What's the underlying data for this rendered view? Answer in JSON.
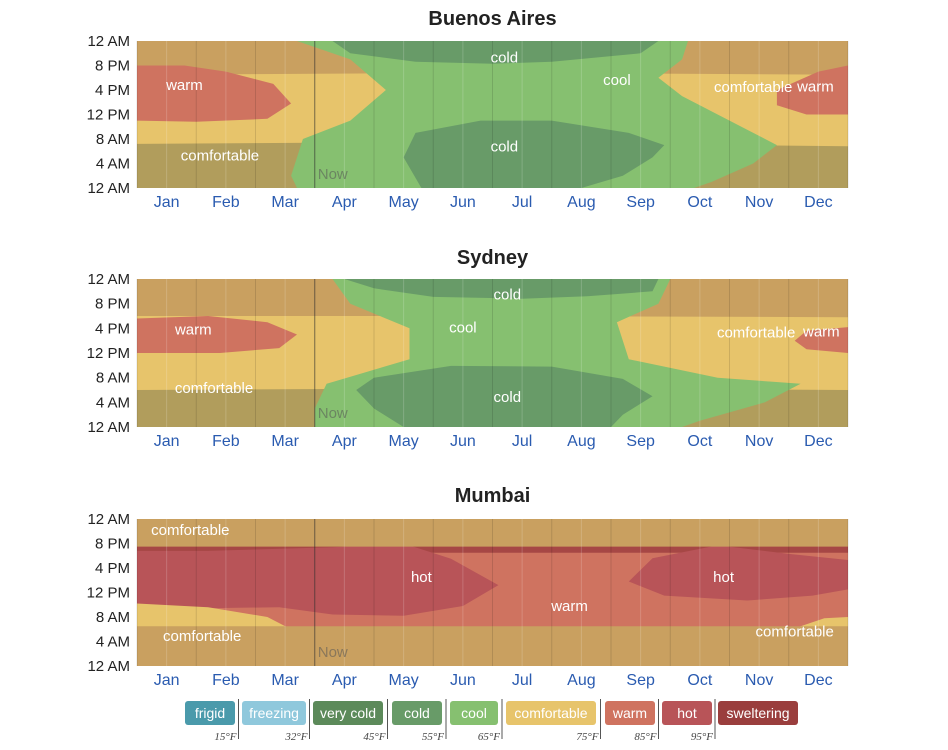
{
  "colors": {
    "frigid": "#4a9aab",
    "freezing": "#8fc8dc",
    "very_cold": "#5c8a5a",
    "cold": "#689b68",
    "cool": "#86c070",
    "comfortable": "#e7c46b",
    "warm": "#cf7360",
    "hot": "#b85458",
    "sweltering": "#9a3e3d",
    "dark_warm": "#c9a060",
    "dark_comfortable": "#b19d5c",
    "dark_cool": "#6ea86a",
    "dark_cold": "#587f52",
    "mumbai_base": "#a64745"
  },
  "chart_data": [
    {
      "type": "heatmap",
      "title": "Buenos Aires",
      "now_label": "Now",
      "now_month": 3.0,
      "xlabel": "",
      "ylabel": "",
      "base": "comfortable",
      "ylim": [
        0,
        24
      ],
      "yticks": [
        "12 AM",
        "4 AM",
        "8 AM",
        "12 PM",
        "4 PM",
        "8 PM",
        "12 AM"
      ],
      "months": [
        "Jan",
        "Feb",
        "Mar",
        "Apr",
        "May",
        "Jun",
        "Jul",
        "Aug",
        "Sep",
        "Oct",
        "Nov",
        "Dec"
      ],
      "bands": [
        {
          "category": "dark_comfortable",
          "polygon": [
            [
              0,
              0
            ],
            [
              12,
              0
            ],
            [
              12,
              6.8
            ],
            [
              7,
              7.3
            ],
            [
              3,
              7.4
            ],
            [
              0,
              7.2
            ]
          ]
        },
        {
          "category": "dark_warm",
          "polygon": [
            [
              0,
              18.5
            ],
            [
              0,
              24
            ],
            [
              12,
              24
            ],
            [
              12,
              18.5
            ],
            [
              6,
              18.8
            ]
          ]
        },
        {
          "category": "cool",
          "polygon": [
            [
              2.7,
              24
            ],
            [
              9.3,
              24
            ],
            [
              9.2,
              21
            ],
            [
              8.8,
              18
            ],
            [
              9.2,
              15
            ],
            [
              10.8,
              7
            ],
            [
              10.4,
              4
            ],
            [
              9.7,
              1
            ],
            [
              9.4,
              0
            ],
            [
              2.7,
              0
            ],
            [
              2.6,
              2
            ],
            [
              2.8,
              8
            ],
            [
              3.6,
              11
            ],
            [
              4.2,
              16
            ],
            [
              3.6,
              21
            ]
          ]
        },
        {
          "category": "cold",
          "polygon": [
            [
              4.8,
              0
            ],
            [
              7.5,
              0
            ],
            [
              8.2,
              2
            ],
            [
              8.7,
              5
            ],
            [
              8.9,
              7
            ],
            [
              8.3,
              9
            ],
            [
              7,
              11
            ],
            [
              5.8,
              11
            ],
            [
              4.7,
              9
            ],
            [
              4.5,
              5
            ]
          ]
        },
        {
          "category": "cold",
          "polygon": [
            [
              3.3,
              24
            ],
            [
              8.8,
              24
            ],
            [
              8.5,
              22
            ],
            [
              7,
              20.6
            ],
            [
              6,
              20.3
            ],
            [
              4.7,
              20.6
            ],
            [
              3.6,
              22
            ]
          ]
        },
        {
          "category": "warm",
          "polygon": [
            [
              0,
              11
            ],
            [
              1,
              10.8
            ],
            [
              2.2,
              11.3
            ],
            [
              2.6,
              13.8
            ],
            [
              2.3,
              17
            ],
            [
              1.5,
              19
            ],
            [
              0.8,
              20
            ],
            [
              0,
              20
            ]
          ]
        },
        {
          "category": "warm",
          "polygon": [
            [
              12,
              12
            ],
            [
              11.3,
              12
            ],
            [
              10.8,
              13.5
            ],
            [
              10.8,
              16
            ],
            [
              11.5,
              19
            ],
            [
              12,
              20
            ]
          ]
        }
      ],
      "labels": [
        {
          "text": "cold",
          "x": 6.2,
          "y": 21.3
        },
        {
          "text": "cool",
          "x": 8.1,
          "y": 17.6
        },
        {
          "text": "warm",
          "x": 0.8,
          "y": 16.8
        },
        {
          "text": "comfortable",
          "x": 10.4,
          "y": 16.5
        },
        {
          "text": "warm",
          "x": 11.45,
          "y": 16.6
        },
        {
          "text": "cold",
          "x": 6.2,
          "y": 6.8
        },
        {
          "text": "comfortable",
          "x": 1.4,
          "y": 5.3
        }
      ]
    },
    {
      "type": "heatmap",
      "title": "Sydney",
      "now_label": "Now",
      "now_month": 3.0,
      "xlabel": "",
      "ylabel": "",
      "base": "comfortable",
      "ylim": [
        0,
        24
      ],
      "yticks": [
        "12 AM",
        "4 AM",
        "8 AM",
        "12 PM",
        "4 PM",
        "8 PM",
        "12 AM"
      ],
      "months": [
        "Jan",
        "Feb",
        "Mar",
        "Apr",
        "May",
        "Jun",
        "Jul",
        "Aug",
        "Sep",
        "Oct",
        "Nov",
        "Dec"
      ],
      "bands": [
        {
          "category": "dark_comfortable",
          "polygon": [
            [
              0,
              0
            ],
            [
              12,
              0
            ],
            [
              12,
              6
            ],
            [
              6,
              6.3
            ],
            [
              0,
              6
            ]
          ]
        },
        {
          "category": "dark_warm",
          "polygon": [
            [
              0,
              18
            ],
            [
              0,
              24
            ],
            [
              12,
              24
            ],
            [
              12,
              17.8
            ],
            [
              6,
              18
            ]
          ]
        },
        {
          "category": "cool",
          "polygon": [
            [
              3.3,
              24
            ],
            [
              9,
              24
            ],
            [
              8.8,
              20
            ],
            [
              8.1,
              17
            ],
            [
              8.3,
              11
            ],
            [
              9.8,
              8
            ],
            [
              11.2,
              7
            ],
            [
              10.6,
              4
            ],
            [
              9.5,
              1
            ],
            [
              9.2,
              0
            ],
            [
              3,
              0
            ],
            [
              3,
              3
            ],
            [
              3.2,
              7
            ],
            [
              4.6,
              11
            ],
            [
              4.6,
              16
            ],
            [
              3.6,
              20
            ]
          ]
        },
        {
          "category": "cold",
          "polygon": [
            [
              4.5,
              0
            ],
            [
              8,
              0
            ],
            [
              8.2,
              2
            ],
            [
              8.7,
              5
            ],
            [
              8.2,
              7.8
            ],
            [
              7,
              9.8
            ],
            [
              5.3,
              9.9
            ],
            [
              4,
              8
            ],
            [
              3.7,
              6
            ],
            [
              4,
              3
            ]
          ]
        },
        {
          "category": "cold",
          "polygon": [
            [
              3.5,
              24
            ],
            [
              8.8,
              24
            ],
            [
              8.7,
              22
            ],
            [
              7.6,
              21.2
            ],
            [
              6.5,
              20.8
            ],
            [
              5,
              21.1
            ],
            [
              4,
              22.5
            ]
          ]
        },
        {
          "category": "warm",
          "polygon": [
            [
              0,
              12
            ],
            [
              1.4,
              12
            ],
            [
              2.4,
              12.8
            ],
            [
              2.7,
              15
            ],
            [
              2.2,
              17
            ],
            [
              1.2,
              18
            ],
            [
              0,
              17.6
            ]
          ]
        },
        {
          "category": "warm",
          "polygon": [
            [
              12,
              12
            ],
            [
              11.3,
              12.6
            ],
            [
              11.1,
              14
            ],
            [
              11.3,
              15.6
            ],
            [
              12,
              16.2
            ]
          ]
        }
      ],
      "labels": [
        {
          "text": "cold",
          "x": 6.25,
          "y": 21.5
        },
        {
          "text": "cool",
          "x": 5.5,
          "y": 16.1
        },
        {
          "text": "warm",
          "x": 0.95,
          "y": 15.8
        },
        {
          "text": "comfortable",
          "x": 10.45,
          "y": 15.3
        },
        {
          "text": "warm",
          "x": 11.55,
          "y": 15.5
        },
        {
          "text": "comfortable",
          "x": 1.3,
          "y": 6.3
        },
        {
          "text": "cold",
          "x": 6.25,
          "y": 4.9
        }
      ]
    },
    {
      "type": "heatmap",
      "title": "Mumbai",
      "now_label": "Now",
      "now_month": 3.0,
      "xlabel": "",
      "ylabel": "",
      "base": "mumbai_base",
      "ylim": [
        0,
        24
      ],
      "yticks": [
        "12 AM",
        "4 AM",
        "8 AM",
        "12 PM",
        "4 PM",
        "8 PM",
        "12 AM"
      ],
      "months": [
        "Jan",
        "Feb",
        "Mar",
        "Apr",
        "May",
        "Jun",
        "Jul",
        "Aug",
        "Sep",
        "Oct",
        "Nov",
        "Dec"
      ],
      "bands": [
        {
          "category": "warm",
          "polygon": [
            [
              0,
              0
            ],
            [
              12,
              0
            ],
            [
              12,
              18.5
            ],
            [
              0,
              18.5
            ]
          ]
        },
        {
          "category": "hot",
          "polygon": [
            [
              0,
              9.5
            ],
            [
              1,
              9.4
            ],
            [
              2.4,
              9.6
            ],
            [
              3.3,
              8.4
            ],
            [
              4.5,
              8.2
            ],
            [
              5.5,
              9.8
            ],
            [
              6.1,
              13.2
            ],
            [
              5.3,
              17.5
            ],
            [
              4.5,
              20
            ],
            [
              3.3,
              19.4
            ],
            [
              1.2,
              18.8
            ],
            [
              0,
              18.8
            ]
          ]
        },
        {
          "category": "hot",
          "polygon": [
            [
              8.3,
              13.8
            ],
            [
              8.9,
              11.5
            ],
            [
              10.3,
              10.7
            ],
            [
              11.4,
              11.5
            ],
            [
              12,
              12.5
            ],
            [
              12,
              17.3
            ],
            [
              11,
              18.3
            ],
            [
              9.8,
              19.7
            ],
            [
              8.7,
              17.6
            ]
          ]
        },
        {
          "category": "comfortable",
          "polygon": [
            [
              0,
              0
            ],
            [
              1.7,
              0
            ],
            [
              2.1,
              2
            ],
            [
              2.6,
              6
            ],
            [
              2.2,
              8
            ],
            [
              1.2,
              9.6
            ],
            [
              0,
              10.2
            ]
          ]
        },
        {
          "category": "comfortable",
          "polygon": [
            [
              12,
              0
            ],
            [
              10.5,
              0
            ],
            [
              10.3,
              3
            ],
            [
              10.9,
              5.5
            ],
            [
              11.6,
              7.8
            ],
            [
              12,
              8
            ]
          ]
        },
        {
          "category": "comfortable",
          "polygon": [
            [
              0,
              21
            ],
            [
              0,
              24
            ],
            [
              2.4,
              24
            ],
            [
              2.2,
              22.5
            ],
            [
              1,
              21.5
            ]
          ]
        },
        {
          "category": "comfortable",
          "polygon": [
            [
              12,
              22.5
            ],
            [
              12,
              24
            ],
            [
              10.8,
              24
            ]
          ]
        },
        {
          "category": "dark_warm",
          "polygon": [
            [
              0,
              0
            ],
            [
              12,
              0
            ],
            [
              12,
              6.5
            ],
            [
              6,
              6.5
            ],
            [
              0,
              6.5
            ]
          ]
        },
        {
          "category": "dark_warm",
          "polygon": [
            [
              0,
              19.5
            ],
            [
              0,
              24
            ],
            [
              12,
              24
            ],
            [
              12,
              19.5
            ],
            [
              6,
              19.5
            ]
          ]
        }
      ],
      "labels": [
        {
          "text": "comfortable",
          "x": 0.9,
          "y": 22.2
        },
        {
          "text": "hot",
          "x": 4.8,
          "y": 14.5
        },
        {
          "text": "hot",
          "x": 9.9,
          "y": 14.5
        },
        {
          "text": "warm",
          "x": 7.3,
          "y": 9.8
        },
        {
          "text": "comfortable",
          "x": 1.1,
          "y": 4.9
        },
        {
          "text": "comfortable",
          "x": 11.1,
          "y": 5.6
        }
      ]
    }
  ],
  "legend": {
    "items": [
      {
        "label": "frigid",
        "color": "#4a9aab"
      },
      {
        "label": "freezing",
        "color": "#8fc8dc"
      },
      {
        "label": "very cold",
        "color": "#5c8a5a"
      },
      {
        "label": "cold",
        "color": "#689b68"
      },
      {
        "label": "cool",
        "color": "#86c070"
      },
      {
        "label": "comfortable",
        "color": "#e7c46b"
      },
      {
        "label": "warm",
        "color": "#cf7360"
      },
      {
        "label": "hot",
        "color": "#b85458"
      },
      {
        "label": "sweltering",
        "color": "#9a3e3d"
      }
    ],
    "thresholds": [
      "15°F",
      "32°F",
      "45°F",
      "55°F",
      "65°F",
      "75°F",
      "85°F",
      "95°F"
    ]
  }
}
